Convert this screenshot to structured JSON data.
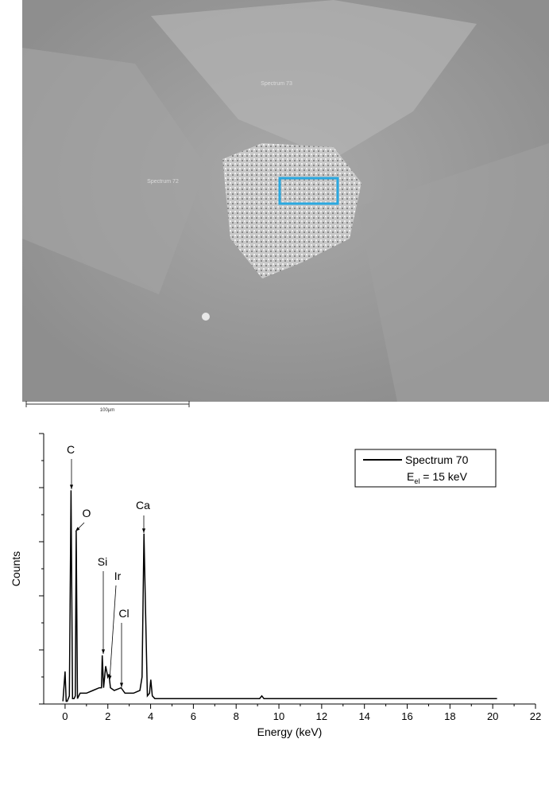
{
  "image": {
    "labels": [
      "Spectrum 73",
      "Spectrum 72"
    ],
    "scale_bar": "100µm"
  },
  "chart_data": {
    "type": "line",
    "x": [
      -0.1,
      0,
      0.05,
      0.1,
      0.2,
      0.28,
      0.35,
      0.42,
      0.48,
      0.52,
      0.58,
      0.7,
      1.0,
      1.3,
      1.6,
      1.7,
      1.74,
      1.8,
      1.9,
      2.0,
      2.05,
      2.12,
      2.3,
      2.62,
      2.8,
      3.2,
      3.5,
      3.6,
      3.69,
      3.75,
      3.85,
      3.95,
      4.01,
      4.08,
      4.2,
      6,
      8,
      9.1,
      9.2,
      9.3,
      12,
      16,
      20.2
    ],
    "series": [
      {
        "name": "Spectrum 70",
        "color": "#000000",
        "values": [
          1,
          12,
          1,
          1,
          3,
          79,
          2,
          2,
          3,
          64,
          2,
          4,
          4,
          5,
          6,
          6,
          18,
          6,
          14,
          10,
          11,
          6,
          5,
          6,
          4,
          4,
          5,
          10,
          63,
          40,
          3,
          4,
          9,
          3,
          2,
          2,
          2,
          2,
          3,
          2,
          2,
          2,
          2
        ]
      }
    ],
    "legend_note": {
      "main": "E",
      "sub": "el",
      "rest": " = 15 keV"
    },
    "annotations": [
      "C",
      "O",
      "Ca",
      "Si",
      "Ir",
      "Cl"
    ],
    "xlabel": "Energy (keV)",
    "ylabel": "Counts",
    "xlim": [
      -1,
      22
    ],
    "xticks": [
      0,
      2,
      4,
      6,
      8,
      10,
      12,
      14,
      16,
      18,
      20,
      22
    ],
    "ylim": [
      0,
      100
    ],
    "yticks": [
      0,
      10,
      20,
      30,
      40,
      50,
      60,
      70,
      80,
      90,
      100
    ]
  }
}
